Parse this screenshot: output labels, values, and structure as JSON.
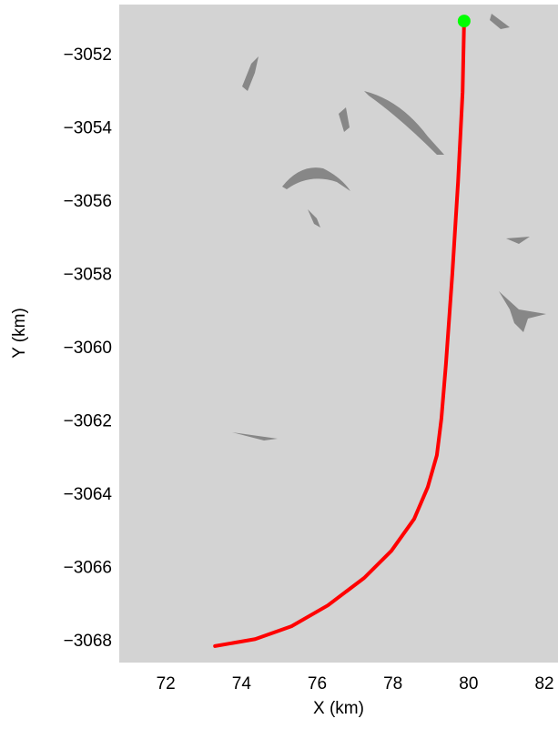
{
  "chart_data": {
    "type": "line",
    "xlabel": "X (km)",
    "ylabel": "Y (km)",
    "xlim": [
      70.77,
      82.36
    ],
    "ylim": [
      -3068.57,
      -3050.61
    ],
    "xticks": [
      72,
      74,
      76,
      78,
      80,
      82
    ],
    "yticks": [
      {
        "value": -3052,
        "label": "−3052"
      },
      {
        "value": -3054,
        "label": "−3054"
      },
      {
        "value": -3056,
        "label": "−3056"
      },
      {
        "value": -3058,
        "label": "−3058"
      },
      {
        "value": -3060,
        "label": "−3060"
      },
      {
        "value": -3062,
        "label": "−3062"
      },
      {
        "value": -3064,
        "label": "−3064"
      },
      {
        "value": -3066,
        "label": "−3066"
      },
      {
        "value": -3068,
        "label": "−3068"
      }
    ],
    "series": [
      {
        "color": "#ff0000",
        "x": [
          79.88,
          79.84,
          79.72,
          79.57,
          79.4,
          79.28,
          79.16,
          78.92,
          78.56,
          77.96,
          77.24,
          76.28,
          75.32,
          74.36,
          73.3
        ],
        "values": [
          -3051.06,
          -3053.0,
          -3055.45,
          -3057.94,
          -3060.42,
          -3061.91,
          -3062.91,
          -3063.78,
          -3064.65,
          -3065.52,
          -3066.26,
          -3067.01,
          -3067.58,
          -3067.93,
          -3068.12
        ]
      },
      {
        "color": "#00ff00",
        "x": [
          79.88
        ],
        "values": [
          -3051.06
        ]
      }
    ]
  }
}
